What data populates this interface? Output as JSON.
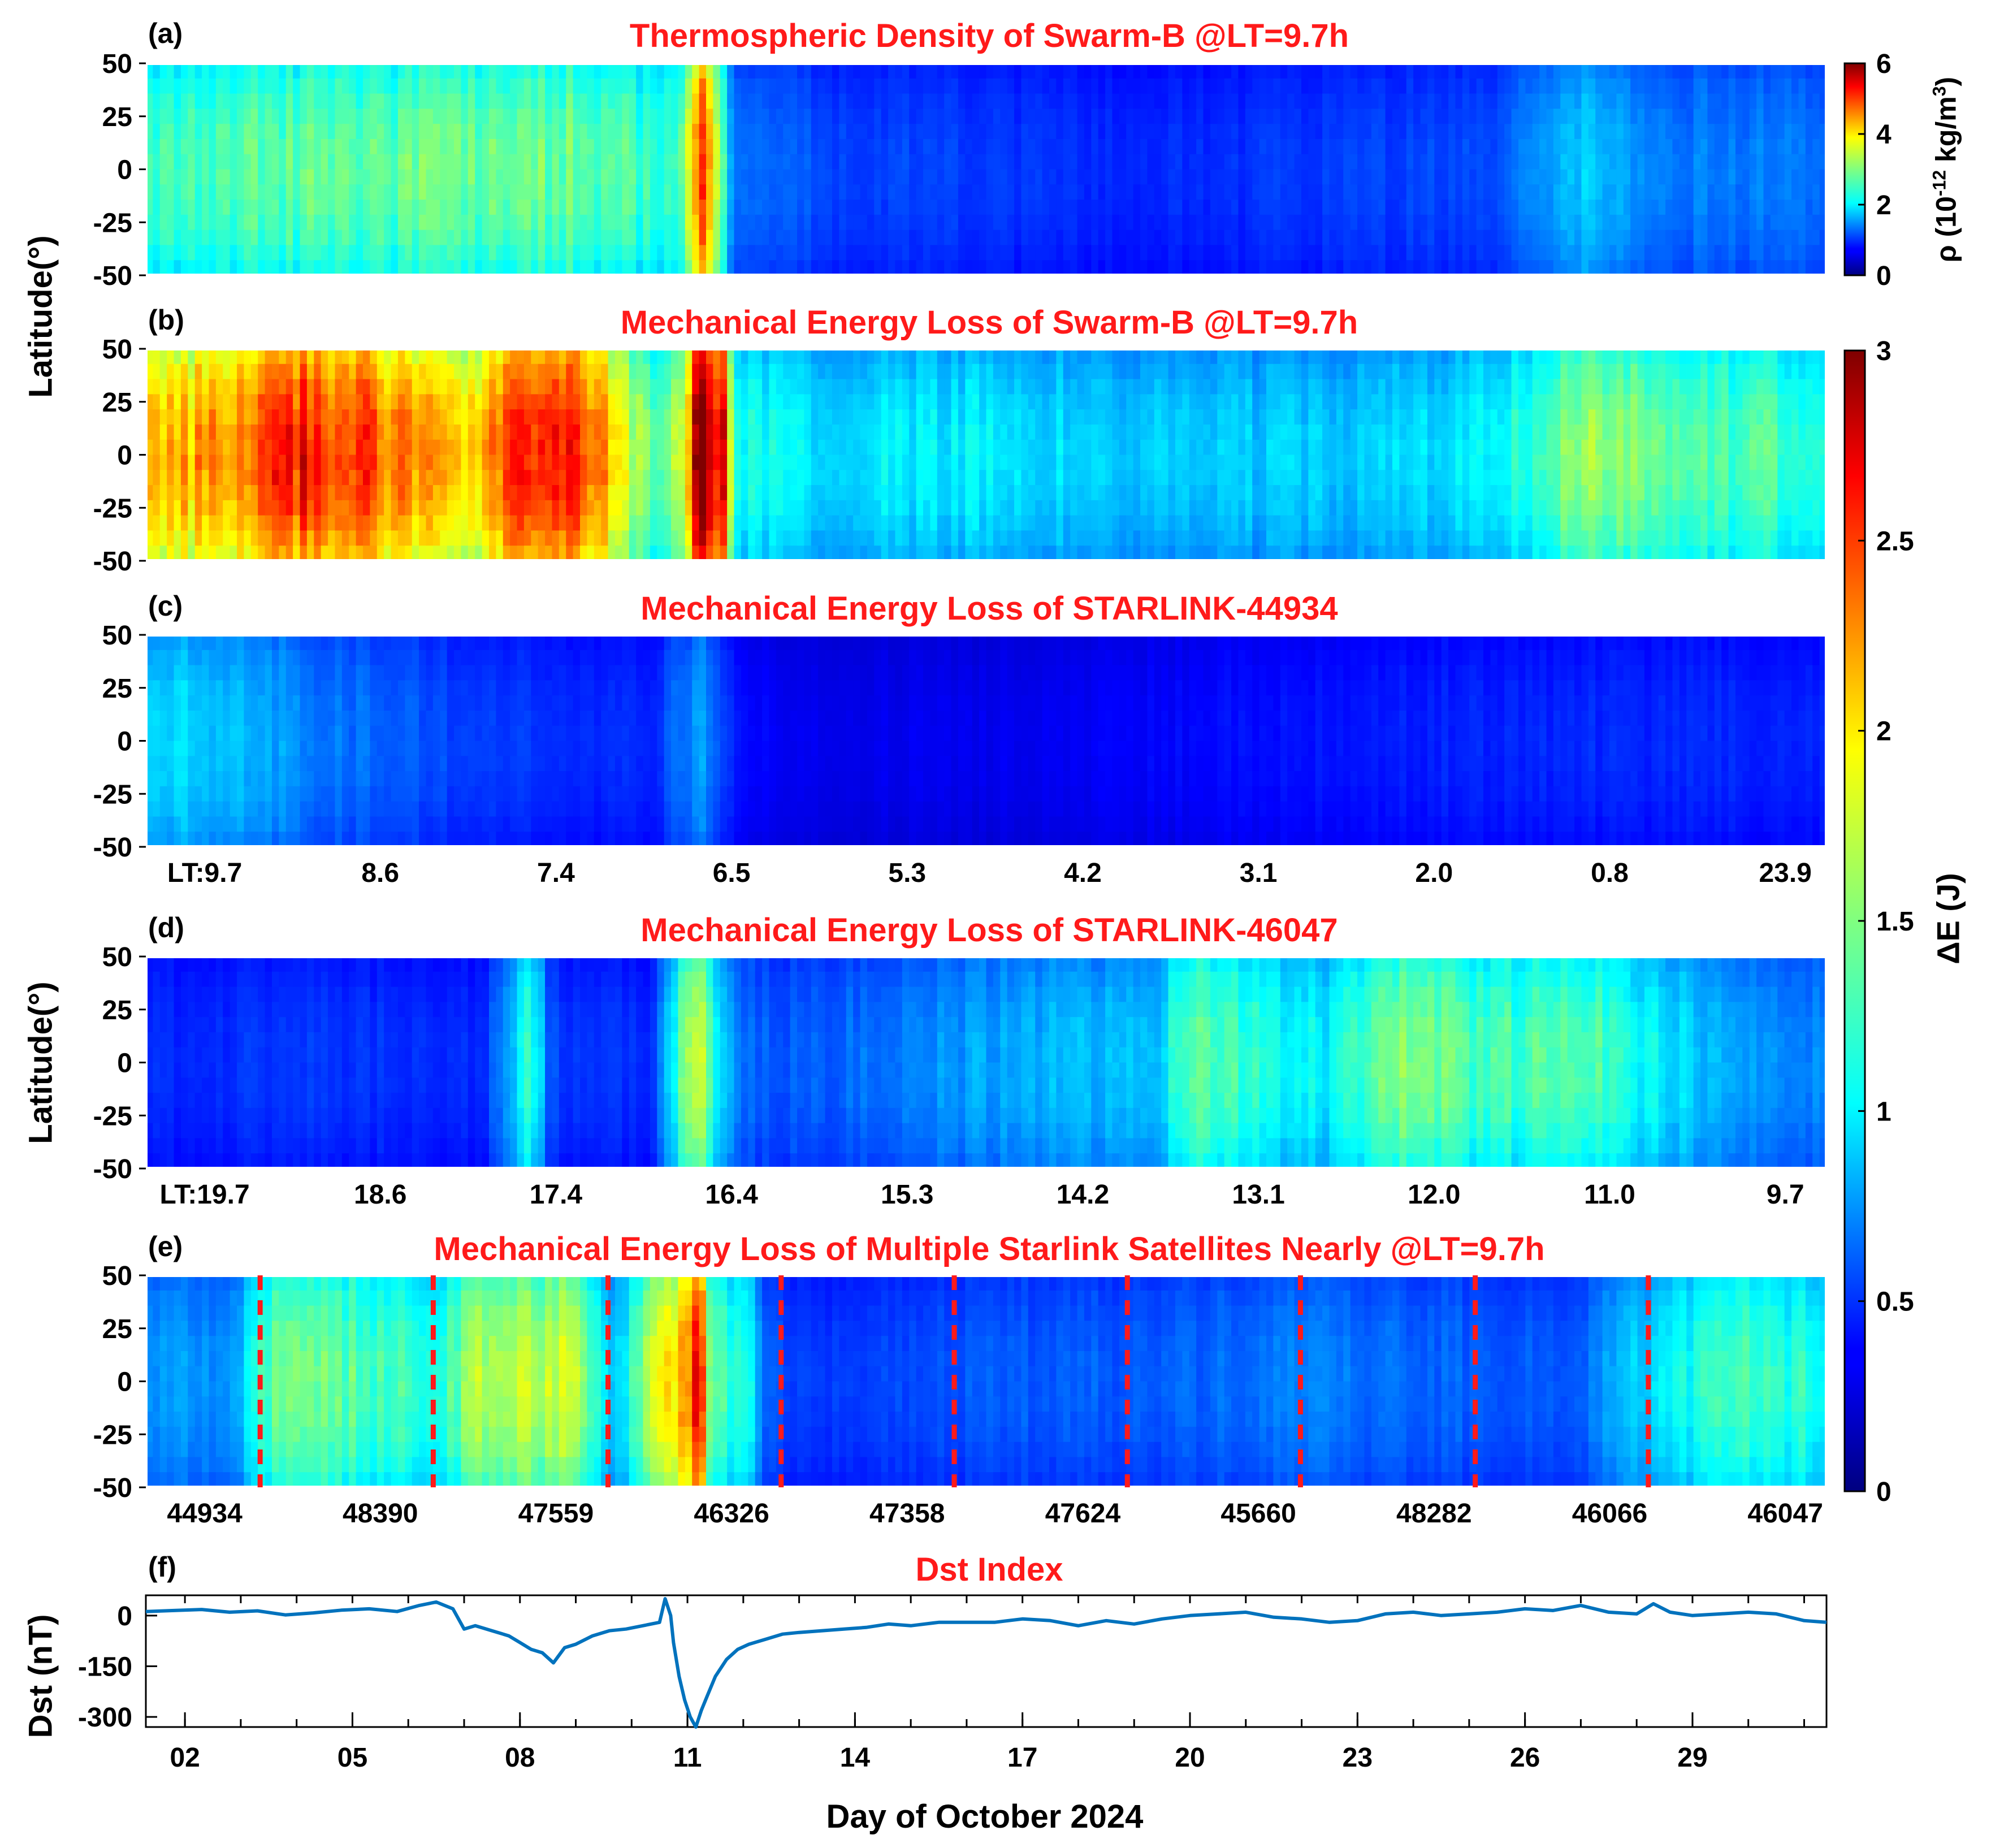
{
  "figure": {
    "xlabel": "Day of October 2024",
    "latitude_ylabel": "Latitude(°)",
    "panel_labels": [
      "(a)",
      "(b)",
      "(c)",
      "(d)",
      "(e)",
      "(f)"
    ]
  },
  "colorbars": {
    "density": {
      "label_main": "ρ (10",
      "label_exp": "-12",
      "label_unit": " kg/m",
      "label_exp2": "3",
      "label_close": ")",
      "range": [
        0,
        6
      ],
      "ticks": [
        "0",
        "2",
        "4",
        "6"
      ]
    },
    "energy": {
      "label": "ΔE (J)",
      "range": [
        0,
        3
      ],
      "ticks": [
        "0",
        "0.5",
        "1",
        "1.5",
        "2",
        "2.5",
        "3"
      ]
    }
  },
  "chart_data": [
    {
      "id": "a",
      "type": "heatmap",
      "title": "Thermospheric Density of Swarm-B @LT=9.7h",
      "ylabel": "Latitude(°)",
      "ylim": [
        -50,
        50
      ],
      "yticks": [
        "50",
        "25",
        "0",
        "-25",
        "-50"
      ],
      "colorbar": "density",
      "column_profile": {
        "description": "approximate column-mean density (10^-12 kg/m^3) vs fraction of time axis",
        "x": [
          0.0,
          0.1,
          0.2,
          0.25,
          0.3,
          0.32,
          0.33,
          0.34,
          0.35,
          0.4,
          0.5,
          0.6,
          0.7,
          0.8,
          0.86,
          0.9,
          1.0
        ],
        "values": [
          2.4,
          2.6,
          2.6,
          2.7,
          2.4,
          2.5,
          4.8,
          3.0,
          1.4,
          1.1,
          1.0,
          0.9,
          1.0,
          1.1,
          1.8,
          1.4,
          1.3
        ]
      }
    },
    {
      "id": "b",
      "type": "heatmap",
      "title": "Mechanical Energy Loss of Swarm-B @LT=9.7h",
      "ylabel": "Latitude(°)",
      "ylim": [
        -50,
        50
      ],
      "yticks": [
        "50",
        "25",
        "0",
        "-25",
        "-50"
      ],
      "colorbar": "energy",
      "column_profile": {
        "x": [
          0.0,
          0.05,
          0.08,
          0.12,
          0.18,
          0.2,
          0.24,
          0.26,
          0.3,
          0.32,
          0.33,
          0.345,
          0.35,
          0.4,
          0.5,
          0.6,
          0.7,
          0.8,
          0.86,
          0.9,
          1.0
        ],
        "values": [
          1.8,
          2.1,
          2.4,
          2.3,
          1.9,
          2.0,
          2.5,
          2.3,
          1.3,
          1.5,
          2.9,
          2.4,
          1.1,
          1.0,
          1.0,
          0.9,
          0.9,
          1.0,
          1.5,
          1.3,
          1.2
        ]
      }
    },
    {
      "id": "c",
      "type": "heatmap",
      "title": "Mechanical Energy Loss of STARLINK-44934",
      "ylabel": "",
      "ylim": [
        -50,
        50
      ],
      "yticks": [
        "50",
        "25",
        "0",
        "-25",
        "-50"
      ],
      "colorbar": "energy",
      "xtick_labels": [
        "LT:9.7",
        "8.6",
        "7.4",
        "6.5",
        "5.3",
        "4.2",
        "3.1",
        "2.0",
        "0.8",
        "23.9"
      ],
      "column_profile": {
        "x": [
          0.0,
          0.05,
          0.1,
          0.2,
          0.3,
          0.33,
          0.345,
          0.36,
          0.4,
          0.5,
          0.6,
          0.7,
          0.8,
          0.9,
          1.0
        ],
        "values": [
          1.0,
          0.9,
          0.7,
          0.5,
          0.45,
          0.8,
          0.5,
          0.35,
          0.3,
          0.3,
          0.35,
          0.4,
          0.45,
          0.45,
          0.45
        ]
      }
    },
    {
      "id": "d",
      "type": "heatmap",
      "title": "Mechanical Energy Loss of STARLINK-46047",
      "ylabel": "Latitude(°)",
      "ylim": [
        -50,
        50
      ],
      "yticks": [
        "50",
        "25",
        "0",
        "-25",
        "-50"
      ],
      "colorbar": "energy",
      "xtick_labels": [
        "LT:19.7",
        "18.6",
        "17.4",
        "16.4",
        "15.3",
        "14.2",
        "13.1",
        "12.0",
        "11.0",
        "9.7"
      ],
      "column_profile": {
        "x": [
          0.0,
          0.1,
          0.2,
          0.23,
          0.24,
          0.25,
          0.3,
          0.33,
          0.335,
          0.35,
          0.37,
          0.4,
          0.5,
          0.6,
          0.62,
          0.7,
          0.75,
          0.8,
          0.85,
          0.9,
          0.95,
          1.0
        ],
        "values": [
          0.45,
          0.5,
          0.45,
          1.2,
          0.6,
          0.5,
          0.45,
          1.8,
          1.2,
          0.7,
          0.6,
          0.6,
          0.8,
          0.9,
          1.3,
          1.0,
          1.4,
          1.2,
          1.3,
          1.0,
          0.8,
          0.7
        ]
      }
    },
    {
      "id": "e",
      "type": "heatmap",
      "title": "Mechanical Energy Loss of Multiple Starlink Satellites Nearly @LT=9.7h",
      "ylabel": "",
      "ylim": [
        -50,
        50
      ],
      "yticks": [
        "50",
        "25",
        "0",
        "-25",
        "-50"
      ],
      "colorbar": "energy",
      "xtick_labels": [
        "44934",
        "48390",
        "47559",
        "46326",
        "47358",
        "47624",
        "45660",
        "48282",
        "46066",
        "46047"
      ],
      "segment_boundaries": [
        0.068,
        0.171,
        0.275,
        0.378,
        0.481,
        0.584,
        0.687,
        0.791,
        0.894
      ],
      "column_profile": {
        "x": [
          0.0,
          0.05,
          0.07,
          0.1,
          0.15,
          0.18,
          0.2,
          0.22,
          0.25,
          0.28,
          0.33,
          0.335,
          0.36,
          0.37,
          0.4,
          0.5,
          0.6,
          0.7,
          0.8,
          0.85,
          0.9,
          0.95,
          1.0
        ],
        "values": [
          0.8,
          0.7,
          1.3,
          1.4,
          1.2,
          1.2,
          1.6,
          1.5,
          1.6,
          0.9,
          2.4,
          1.4,
          1.0,
          0.6,
          0.5,
          0.6,
          0.6,
          0.7,
          0.6,
          0.6,
          1.0,
          1.2,
          1.1
        ]
      }
    },
    {
      "id": "f",
      "type": "line",
      "title": "Dst Index",
      "ylabel": "Dst (nT)",
      "xlabel": "Day of October 2024",
      "ylim": [
        -330,
        60
      ],
      "yticks": [
        "0",
        "-150",
        "-300"
      ],
      "ytick_values": [
        0,
        -150,
        -300
      ],
      "xlim": [
        1.3,
        31.4
      ],
      "xtick_labels": [
        "02",
        "05",
        "08",
        "11",
        "14",
        "17",
        "20",
        "23",
        "26",
        "29"
      ],
      "xtick_values": [
        2,
        5,
        8,
        11,
        14,
        17,
        20,
        23,
        26,
        29
      ],
      "series": [
        {
          "name": "Dst",
          "color": "#0072bd",
          "x": [
            1.3,
            1.8,
            2.3,
            2.8,
            3.3,
            3.8,
            4.3,
            4.8,
            5.3,
            5.8,
            6.2,
            6.5,
            6.8,
            7.0,
            7.2,
            7.5,
            7.8,
            8.0,
            8.2,
            8.4,
            8.6,
            8.8,
            9.0,
            9.3,
            9.6,
            9.9,
            10.2,
            10.5,
            10.6,
            10.7,
            10.75,
            10.85,
            10.95,
            11.05,
            11.15,
            11.25,
            11.35,
            11.5,
            11.7,
            11.9,
            12.1,
            12.4,
            12.7,
            13.0,
            13.4,
            13.8,
            14.2,
            14.6,
            15.0,
            15.5,
            16.0,
            16.5,
            17.0,
            17.5,
            18.0,
            18.5,
            19.0,
            19.5,
            20.0,
            20.5,
            21.0,
            21.5,
            22.0,
            22.5,
            23.0,
            23.5,
            24.0,
            24.5,
            25.0,
            25.5,
            26.0,
            26.5,
            27.0,
            27.5,
            28.0,
            28.3,
            28.6,
            29.0,
            29.5,
            30.0,
            30.5,
            31.0,
            31.4
          ],
          "values": [
            12,
            15,
            18,
            10,
            14,
            2,
            8,
            16,
            20,
            12,
            30,
            40,
            20,
            -40,
            -30,
            -45,
            -60,
            -80,
            -100,
            -110,
            -140,
            -95,
            -85,
            -60,
            -45,
            -40,
            -30,
            -20,
            50,
            0,
            -80,
            -180,
            -250,
            -300,
            -330,
            -280,
            -240,
            -180,
            -130,
            -100,
            -85,
            -70,
            -55,
            -50,
            -45,
            -40,
            -35,
            -25,
            -30,
            -20,
            -20,
            -20,
            -10,
            -15,
            -30,
            -15,
            -25,
            -10,
            0,
            5,
            10,
            -5,
            -10,
            -20,
            -15,
            5,
            10,
            0,
            5,
            10,
            20,
            15,
            30,
            10,
            5,
            35,
            10,
            0,
            5,
            10,
            5,
            -15,
            -20
          ]
        }
      ]
    }
  ]
}
